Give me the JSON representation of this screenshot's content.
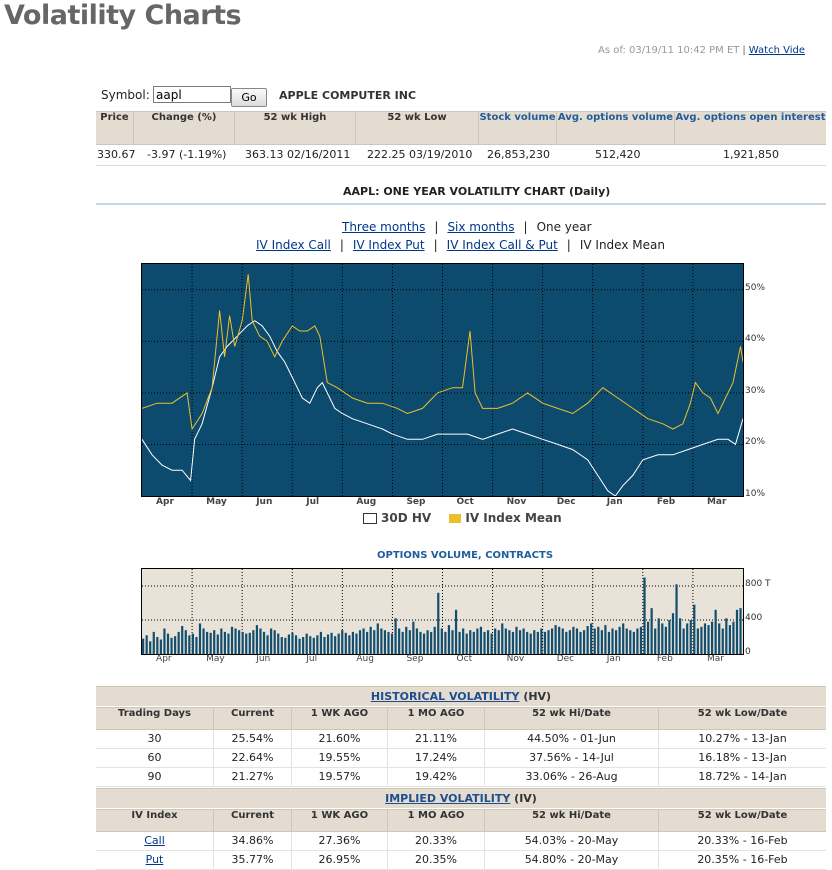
{
  "page": {
    "title": "Volatility Charts",
    "as_of": "As of: 03/19/11 10:42 PM ET",
    "separator": "|",
    "watch_video": "Watch Vide"
  },
  "symbol": {
    "label": "Symbol:",
    "value": "aapl",
    "go": "Go",
    "company": "APPLE COMPUTER INC"
  },
  "quote": {
    "headers": [
      "Price",
      "Change (%)",
      "52 wk High",
      "52 wk Low",
      "Stock volume",
      "Avg. options volume",
      "Avg. options open interest"
    ],
    "values": [
      "330.67",
      "-3.97  (-1.19%)",
      "363.13  02/16/2011",
      "222.25  03/19/2010",
      "26,853,230",
      "512,420",
      "1,921,850"
    ]
  },
  "vol_chart": {
    "title": "AAPL: ONE YEAR VOLATILITY CHART (Daily)",
    "range_links": [
      "Three months",
      "Six months"
    ],
    "range_current": "One year",
    "sep": "|",
    "index_links": [
      "IV Index Call",
      "IV Index Put",
      "IV Index Call & Put"
    ],
    "index_current": "IV Index Mean"
  },
  "options_chart": {
    "title": "OPTIONS VOLUME, CONTRACTS"
  },
  "historical": {
    "title": "HISTORICAL VOLATILITY",
    "suffix": "(HV)",
    "headers": [
      "Trading Days",
      "Current",
      "1 WK AGO",
      "1 MO AGO",
      "52 wk Hi/Date",
      "52 wk Low/Date"
    ],
    "rows": [
      [
        "30",
        "25.54%",
        "21.60%",
        "21.11%",
        "44.50% - 01-Jun",
        "10.27% - 13-Jan"
      ],
      [
        "60",
        "22.64%",
        "19.55%",
        "17.24%",
        "37.56% - 14-Jul",
        "16.18% - 13-Jan"
      ],
      [
        "90",
        "21.27%",
        "19.57%",
        "19.42%",
        "33.06% - 26-Aug",
        "18.72% - 14-Jan"
      ]
    ]
  },
  "implied": {
    "title": "IMPLIED VOLATILITY",
    "suffix": "(IV)",
    "headers": [
      "IV Index",
      "Current",
      "1 WK AGO",
      "1 MO AGO",
      "52 wk Hi/Date",
      "52 wk Low/Date"
    ],
    "rows": [
      [
        "Call",
        "34.86%",
        "27.36%",
        "20.33%",
        "54.03% - 20-May",
        "20.33% - 16-Feb"
      ],
      [
        "Put",
        "35.77%",
        "26.95%",
        "20.35%",
        "54.80% - 20-May",
        "20.35% - 16-Feb"
      ]
    ]
  },
  "chart_data": [
    {
      "type": "line",
      "title": "",
      "x_labels": [
        "Apr",
        "May",
        "Jun",
        "Jul",
        "Aug",
        "Sep",
        "Oct",
        "Nov",
        "Dec",
        "Jan",
        "Feb",
        "Mar"
      ],
      "y_ticks": [
        "10%",
        "20%",
        "30%",
        "40%",
        "50%"
      ],
      "ylim": [
        10,
        55
      ],
      "x_range": [
        0,
        12
      ],
      "grid": true,
      "legend_position": "bottom",
      "series": [
        {
          "name": "30D HV",
          "color": "#ffffff",
          "points": [
            [
              0,
              21
            ],
            [
              0.2,
              18
            ],
            [
              0.4,
              16
            ],
            [
              0.6,
              15
            ],
            [
              0.8,
              15
            ],
            [
              0.97,
              13
            ],
            [
              1.05,
              21
            ],
            [
              1.2,
              24
            ],
            [
              1.4,
              31
            ],
            [
              1.55,
              37
            ],
            [
              1.7,
              39
            ],
            [
              1.9,
              41
            ],
            [
              2.1,
              43
            ],
            [
              2.25,
              44
            ],
            [
              2.4,
              43
            ],
            [
              2.55,
              41
            ],
            [
              2.7,
              38
            ],
            [
              2.85,
              36
            ],
            [
              3.0,
              33
            ],
            [
              3.1,
              31
            ],
            [
              3.2,
              29
            ],
            [
              3.35,
              28
            ],
            [
              3.5,
              31
            ],
            [
              3.6,
              32
            ],
            [
              3.7,
              30
            ],
            [
              3.85,
              27
            ],
            [
              4.0,
              26
            ],
            [
              4.2,
              25
            ],
            [
              4.5,
              24
            ],
            [
              4.8,
              23
            ],
            [
              5.0,
              22
            ],
            [
              5.3,
              21
            ],
            [
              5.6,
              21
            ],
            [
              5.9,
              22
            ],
            [
              6.2,
              22
            ],
            [
              6.5,
              22
            ],
            [
              6.8,
              21
            ],
            [
              7.1,
              22
            ],
            [
              7.4,
              23
            ],
            [
              7.7,
              22
            ],
            [
              8.0,
              21
            ],
            [
              8.3,
              20
            ],
            [
              8.6,
              19
            ],
            [
              8.9,
              17
            ],
            [
              9.1,
              14
            ],
            [
              9.3,
              11
            ],
            [
              9.45,
              10
            ],
            [
              9.6,
              12
            ],
            [
              9.8,
              14
            ],
            [
              10.0,
              17
            ],
            [
              10.3,
              18
            ],
            [
              10.6,
              18
            ],
            [
              10.9,
              19
            ],
            [
              11.2,
              20
            ],
            [
              11.5,
              21
            ],
            [
              11.7,
              21
            ],
            [
              11.85,
              20
            ],
            [
              12.0,
              25
            ]
          ]
        },
        {
          "name": "IV Index Mean",
          "color": "#ecc02a",
          "points": [
            [
              0,
              27
            ],
            [
              0.3,
              28
            ],
            [
              0.6,
              28
            ],
            [
              0.9,
              30
            ],
            [
              1.0,
              23
            ],
            [
              1.2,
              26
            ],
            [
              1.4,
              31
            ],
            [
              1.55,
              46
            ],
            [
              1.65,
              37
            ],
            [
              1.75,
              45
            ],
            [
              1.85,
              39
            ],
            [
              2.0,
              44
            ],
            [
              2.12,
              53
            ],
            [
              2.2,
              44
            ],
            [
              2.35,
              41
            ],
            [
              2.5,
              40
            ],
            [
              2.65,
              37
            ],
            [
              2.8,
              40
            ],
            [
              3.0,
              43
            ],
            [
              3.15,
              42
            ],
            [
              3.3,
              42
            ],
            [
              3.45,
              43
            ],
            [
              3.55,
              41
            ],
            [
              3.7,
              32
            ],
            [
              3.9,
              31
            ],
            [
              4.2,
              29
            ],
            [
              4.5,
              28
            ],
            [
              4.8,
              28
            ],
            [
              5.1,
              27
            ],
            [
              5.3,
              26
            ],
            [
              5.6,
              27
            ],
            [
              5.9,
              30
            ],
            [
              6.2,
              31
            ],
            [
              6.4,
              31
            ],
            [
              6.55,
              42
            ],
            [
              6.65,
              30
            ],
            [
              6.8,
              27
            ],
            [
              7.1,
              27
            ],
            [
              7.4,
              28
            ],
            [
              7.7,
              30
            ],
            [
              8.0,
              28
            ],
            [
              8.3,
              27
            ],
            [
              8.6,
              26
            ],
            [
              8.9,
              28
            ],
            [
              9.2,
              31
            ],
            [
              9.5,
              29
            ],
            [
              9.8,
              27
            ],
            [
              10.1,
              25
            ],
            [
              10.4,
              24
            ],
            [
              10.6,
              23
            ],
            [
              10.8,
              24
            ],
            [
              10.95,
              28
            ],
            [
              11.05,
              32
            ],
            [
              11.2,
              30
            ],
            [
              11.35,
              29
            ],
            [
              11.5,
              26
            ],
            [
              11.65,
              29
            ],
            [
              11.8,
              32
            ],
            [
              11.95,
              39
            ],
            [
              12.0,
              36
            ]
          ]
        }
      ]
    },
    {
      "type": "bar",
      "title": "OPTIONS VOLUME, CONTRACTS",
      "x_labels": [
        "Apr",
        "May",
        "Jun",
        "Jul",
        "Aug",
        "Sep",
        "Oct",
        "Nov",
        "Dec",
        "Jan",
        "Feb",
        "Mar"
      ],
      "y_ticks": [
        "0",
        "400",
        "800 T"
      ],
      "ylim": [
        0,
        1000
      ],
      "unit": "thousand contracts",
      "values": [
        180,
        220,
        150,
        260,
        200,
        170,
        300,
        240,
        190,
        210,
        260,
        330,
        280,
        220,
        240,
        200,
        360,
        300,
        260,
        250,
        280,
        230,
        300,
        260,
        240,
        320,
        300,
        280,
        260,
        240,
        250,
        280,
        340,
        300,
        260,
        220,
        300,
        280,
        240,
        200,
        190,
        230,
        250,
        220,
        180,
        200,
        240,
        210,
        190,
        220,
        260,
        200,
        230,
        250,
        210,
        240,
        280,
        250,
        220,
        260,
        240,
        280,
        300,
        260,
        320,
        280,
        360,
        300,
        280,
        260,
        240,
        420,
        300,
        260,
        320,
        280,
        380,
        300,
        260,
        240,
        280,
        260,
        320,
        720,
        300,
        260,
        340,
        280,
        520,
        260,
        300,
        240,
        280,
        260,
        300,
        320,
        260,
        280,
        240,
        300,
        280,
        360,
        300,
        280,
        260,
        320,
        280,
        300,
        260,
        240,
        280,
        260,
        300,
        260,
        280,
        300,
        340,
        320,
        300,
        260,
        280,
        320,
        300,
        260,
        280,
        330,
        360,
        300,
        320,
        280,
        340,
        260,
        300,
        280,
        320,
        360,
        300,
        280,
        260,
        300,
        320,
        900,
        380,
        540,
        300,
        420,
        360,
        320,
        400,
        480,
        820,
        420,
        300,
        360,
        400,
        580,
        300,
        320,
        360,
        340,
        380,
        520,
        360,
        300,
        420,
        340,
        380,
        520,
        540
      ]
    }
  ]
}
